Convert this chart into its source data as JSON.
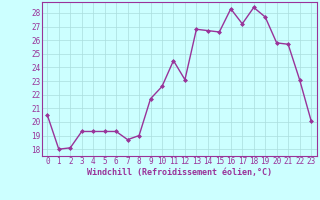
{
  "x": [
    0,
    1,
    2,
    3,
    4,
    5,
    6,
    7,
    8,
    9,
    10,
    11,
    12,
    13,
    14,
    15,
    16,
    17,
    18,
    19,
    20,
    21,
    22,
    23
  ],
  "y": [
    20.5,
    18.0,
    18.1,
    19.3,
    19.3,
    19.3,
    19.3,
    18.7,
    19.0,
    21.7,
    22.6,
    24.5,
    23.1,
    26.8,
    26.7,
    26.6,
    28.3,
    27.2,
    28.4,
    27.7,
    25.8,
    25.7,
    23.1,
    20.1
  ],
  "line_color": "#993399",
  "marker": "D",
  "markersize": 2.0,
  "bg_color": "#ccffff",
  "grid_color": "#aadddd",
  "xlabel": "Windchill (Refroidissement éolien,°C)",
  "xlabel_fontsize": 6.0,
  "yticks": [
    18,
    19,
    20,
    21,
    22,
    23,
    24,
    25,
    26,
    27,
    28
  ],
  "xticks": [
    0,
    1,
    2,
    3,
    4,
    5,
    6,
    7,
    8,
    9,
    10,
    11,
    12,
    13,
    14,
    15,
    16,
    17,
    18,
    19,
    20,
    21,
    22,
    23
  ],
  "ylim": [
    17.5,
    28.8
  ],
  "xlim": [
    -0.5,
    23.5
  ],
  "tick_fontsize": 5.5,
  "tick_color": "#993399",
  "spine_color": "#993399",
  "linewidth": 1.0
}
